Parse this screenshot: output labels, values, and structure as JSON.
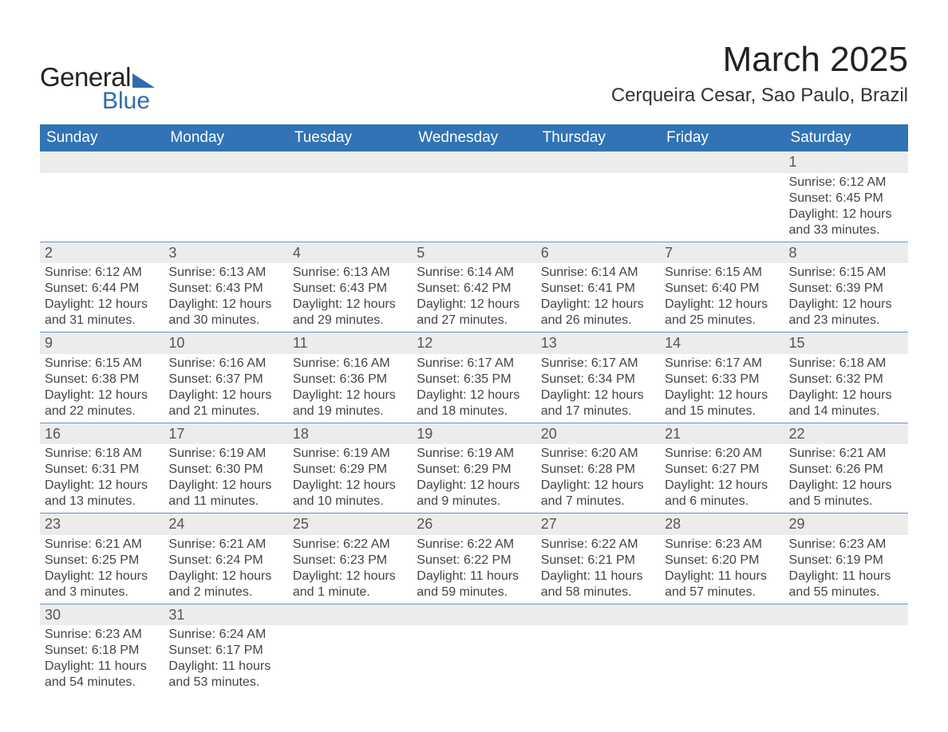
{
  "logo": {
    "general": "General",
    "blue": "Blue"
  },
  "title": "March 2025",
  "location": "Cerqueira Cesar, Sao Paulo, Brazil",
  "header_bg": "#3173b4",
  "header_fg": "#ffffff",
  "datebar_bg": "#ececec",
  "rule_color": "#6494c7",
  "text_color": "#444444",
  "body_fontsize": 16,
  "header_fontsize": 19,
  "title_fontsize": 44,
  "location_fontsize": 24,
  "columns": 7,
  "day_names": [
    "Sunday",
    "Monday",
    "Tuesday",
    "Wednesday",
    "Thursday",
    "Friday",
    "Saturday"
  ],
  "weeks": [
    [
      {
        "date": "",
        "empty": true
      },
      {
        "date": "",
        "empty": true
      },
      {
        "date": "",
        "empty": true
      },
      {
        "date": "",
        "empty": true
      },
      {
        "date": "",
        "empty": true
      },
      {
        "date": "",
        "empty": true
      },
      {
        "date": "1",
        "sunrise": "Sunrise: 6:12 AM",
        "sunset": "Sunset: 6:45 PM",
        "daylight": "Daylight: 12 hours and 33 minutes."
      }
    ],
    [
      {
        "date": "2",
        "sunrise": "Sunrise: 6:12 AM",
        "sunset": "Sunset: 6:44 PM",
        "daylight": "Daylight: 12 hours and 31 minutes."
      },
      {
        "date": "3",
        "sunrise": "Sunrise: 6:13 AM",
        "sunset": "Sunset: 6:43 PM",
        "daylight": "Daylight: 12 hours and 30 minutes."
      },
      {
        "date": "4",
        "sunrise": "Sunrise: 6:13 AM",
        "sunset": "Sunset: 6:43 PM",
        "daylight": "Daylight: 12 hours and 29 minutes."
      },
      {
        "date": "5",
        "sunrise": "Sunrise: 6:14 AM",
        "sunset": "Sunset: 6:42 PM",
        "daylight": "Daylight: 12 hours and 27 minutes."
      },
      {
        "date": "6",
        "sunrise": "Sunrise: 6:14 AM",
        "sunset": "Sunset: 6:41 PM",
        "daylight": "Daylight: 12 hours and 26 minutes."
      },
      {
        "date": "7",
        "sunrise": "Sunrise: 6:15 AM",
        "sunset": "Sunset: 6:40 PM",
        "daylight": "Daylight: 12 hours and 25 minutes."
      },
      {
        "date": "8",
        "sunrise": "Sunrise: 6:15 AM",
        "sunset": "Sunset: 6:39 PM",
        "daylight": "Daylight: 12 hours and 23 minutes."
      }
    ],
    [
      {
        "date": "9",
        "sunrise": "Sunrise: 6:15 AM",
        "sunset": "Sunset: 6:38 PM",
        "daylight": "Daylight: 12 hours and 22 minutes."
      },
      {
        "date": "10",
        "sunrise": "Sunrise: 6:16 AM",
        "sunset": "Sunset: 6:37 PM",
        "daylight": "Daylight: 12 hours and 21 minutes."
      },
      {
        "date": "11",
        "sunrise": "Sunrise: 6:16 AM",
        "sunset": "Sunset: 6:36 PM",
        "daylight": "Daylight: 12 hours and 19 minutes."
      },
      {
        "date": "12",
        "sunrise": "Sunrise: 6:17 AM",
        "sunset": "Sunset: 6:35 PM",
        "daylight": "Daylight: 12 hours and 18 minutes."
      },
      {
        "date": "13",
        "sunrise": "Sunrise: 6:17 AM",
        "sunset": "Sunset: 6:34 PM",
        "daylight": "Daylight: 12 hours and 17 minutes."
      },
      {
        "date": "14",
        "sunrise": "Sunrise: 6:17 AM",
        "sunset": "Sunset: 6:33 PM",
        "daylight": "Daylight: 12 hours and 15 minutes."
      },
      {
        "date": "15",
        "sunrise": "Sunrise: 6:18 AM",
        "sunset": "Sunset: 6:32 PM",
        "daylight": "Daylight: 12 hours and 14 minutes."
      }
    ],
    [
      {
        "date": "16",
        "sunrise": "Sunrise: 6:18 AM",
        "sunset": "Sunset: 6:31 PM",
        "daylight": "Daylight: 12 hours and 13 minutes."
      },
      {
        "date": "17",
        "sunrise": "Sunrise: 6:19 AM",
        "sunset": "Sunset: 6:30 PM",
        "daylight": "Daylight: 12 hours and 11 minutes."
      },
      {
        "date": "18",
        "sunrise": "Sunrise: 6:19 AM",
        "sunset": "Sunset: 6:29 PM",
        "daylight": "Daylight: 12 hours and 10 minutes."
      },
      {
        "date": "19",
        "sunrise": "Sunrise: 6:19 AM",
        "sunset": "Sunset: 6:29 PM",
        "daylight": "Daylight: 12 hours and 9 minutes."
      },
      {
        "date": "20",
        "sunrise": "Sunrise: 6:20 AM",
        "sunset": "Sunset: 6:28 PM",
        "daylight": "Daylight: 12 hours and 7 minutes."
      },
      {
        "date": "21",
        "sunrise": "Sunrise: 6:20 AM",
        "sunset": "Sunset: 6:27 PM",
        "daylight": "Daylight: 12 hours and 6 minutes."
      },
      {
        "date": "22",
        "sunrise": "Sunrise: 6:21 AM",
        "sunset": "Sunset: 6:26 PM",
        "daylight": "Daylight: 12 hours and 5 minutes."
      }
    ],
    [
      {
        "date": "23",
        "sunrise": "Sunrise: 6:21 AM",
        "sunset": "Sunset: 6:25 PM",
        "daylight": "Daylight: 12 hours and 3 minutes."
      },
      {
        "date": "24",
        "sunrise": "Sunrise: 6:21 AM",
        "sunset": "Sunset: 6:24 PM",
        "daylight": "Daylight: 12 hours and 2 minutes."
      },
      {
        "date": "25",
        "sunrise": "Sunrise: 6:22 AM",
        "sunset": "Sunset: 6:23 PM",
        "daylight": "Daylight: 12 hours and 1 minute."
      },
      {
        "date": "26",
        "sunrise": "Sunrise: 6:22 AM",
        "sunset": "Sunset: 6:22 PM",
        "daylight": "Daylight: 11 hours and 59 minutes."
      },
      {
        "date": "27",
        "sunrise": "Sunrise: 6:22 AM",
        "sunset": "Sunset: 6:21 PM",
        "daylight": "Daylight: 11 hours and 58 minutes."
      },
      {
        "date": "28",
        "sunrise": "Sunrise: 6:23 AM",
        "sunset": "Sunset: 6:20 PM",
        "daylight": "Daylight: 11 hours and 57 minutes."
      },
      {
        "date": "29",
        "sunrise": "Sunrise: 6:23 AM",
        "sunset": "Sunset: 6:19 PM",
        "daylight": "Daylight: 11 hours and 55 minutes."
      }
    ],
    [
      {
        "date": "30",
        "sunrise": "Sunrise: 6:23 AM",
        "sunset": "Sunset: 6:18 PM",
        "daylight": "Daylight: 11 hours and 54 minutes."
      },
      {
        "date": "31",
        "sunrise": "Sunrise: 6:24 AM",
        "sunset": "Sunset: 6:17 PM",
        "daylight": "Daylight: 11 hours and 53 minutes."
      },
      {
        "date": "",
        "empty": true
      },
      {
        "date": "",
        "empty": true
      },
      {
        "date": "",
        "empty": true
      },
      {
        "date": "",
        "empty": true
      },
      {
        "date": "",
        "empty": true
      }
    ]
  ]
}
